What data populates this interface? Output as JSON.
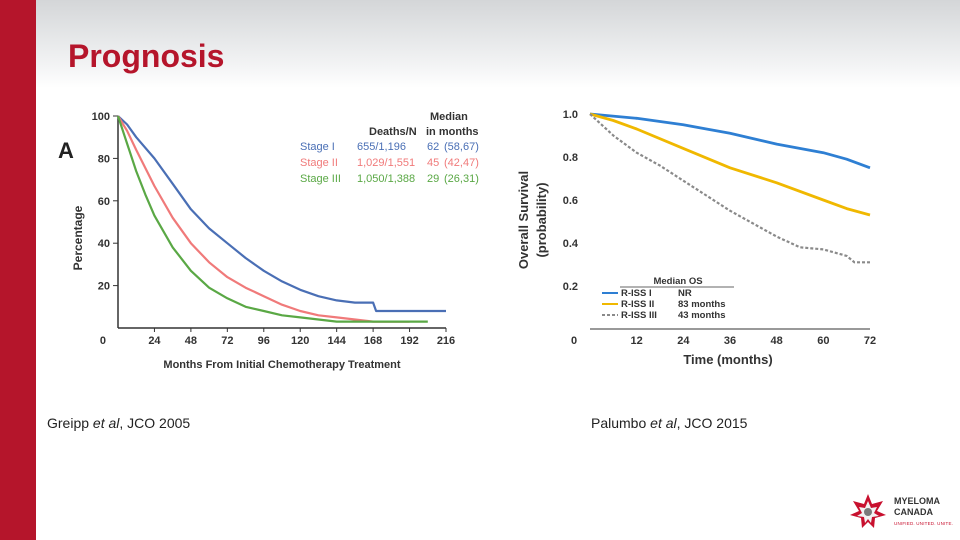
{
  "slide": {
    "title": "Prognosis",
    "accent_color": "#b5152b",
    "title_color": "#b5152b"
  },
  "captions": {
    "left": {
      "author": "Greipp ",
      "etal": "et al",
      "journal": ", JCO 2005"
    },
    "right": {
      "author": "Palumbo ",
      "etal": "et al",
      "journal": ", JCO 2015"
    }
  },
  "logo": {
    "line1": "MYELOMA",
    "line2": "CANADA",
    "tagline": "UNIFIED. UNITED. UNITE."
  },
  "chart_data": [
    {
      "type": "line",
      "panel_label": "A",
      "xlabel": "Months From Initial Chemotherapy Treatment",
      "ylabel": "Percentage",
      "xlim": [
        0,
        216
      ],
      "ylim": [
        0,
        100
      ],
      "x_ticks": [
        0,
        24,
        48,
        72,
        96,
        120,
        144,
        168,
        192,
        216
      ],
      "y_ticks": [
        20,
        40,
        60,
        80,
        100
      ],
      "legend_header": {
        "deaths": "Deaths/N",
        "median_line1": "Median",
        "median_line2": "in months"
      },
      "legend_position": "top-right",
      "series": [
        {
          "name": "Stage I",
          "deaths": "655/1,196",
          "median": "62",
          "ci": "(58,67)",
          "color": "#4a6fb5",
          "x": [
            0,
            6,
            12,
            24,
            36,
            48,
            60,
            72,
            84,
            96,
            108,
            120,
            132,
            144,
            156,
            168,
            170,
            200,
            216
          ],
          "y": [
            100,
            96,
            90,
            80,
            68,
            56,
            47,
            40,
            33,
            27,
            22,
            18,
            15,
            13,
            12,
            12,
            8,
            8,
            8
          ]
        },
        {
          "name": "Stage II",
          "deaths": "1,029/1,551",
          "median": "45",
          "ci": "(42,47)",
          "color": "#f07a7a",
          "x": [
            0,
            6,
            12,
            24,
            36,
            48,
            60,
            72,
            84,
            96,
            108,
            120,
            132,
            144,
            156,
            168,
            180,
            192
          ],
          "y": [
            100,
            93,
            84,
            67,
            52,
            40,
            31,
            24,
            19,
            15,
            11,
            8,
            6,
            5,
            4,
            3,
            3,
            3
          ]
        },
        {
          "name": "Stage III",
          "deaths": "1,050/1,388",
          "median": "29",
          "ci": "(26,31)",
          "color": "#5aa845",
          "x": [
            0,
            6,
            12,
            18,
            24,
            36,
            48,
            60,
            72,
            84,
            96,
            108,
            120,
            132,
            144,
            160,
            180,
            204
          ],
          "y": [
            100,
            87,
            74,
            63,
            53,
            38,
            27,
            19,
            14,
            10,
            8,
            6,
            5,
            4,
            3,
            3,
            3,
            3
          ]
        }
      ]
    },
    {
      "type": "line",
      "xlabel": "Time (months)",
      "ylabel": [
        "Overall Survival",
        "(probability)"
      ],
      "xlim": [
        0,
        72
      ],
      "ylim": [
        0,
        1.0
      ],
      "x_ticks": [
        "0",
        "12",
        "24",
        "36",
        "48",
        "60",
        "72"
      ],
      "y_ticks": [
        "0.2",
        "0.4",
        "0.6",
        "0.8",
        "1.0"
      ],
      "legend_title": "Median OS",
      "legend_position": "bottom-left",
      "series": [
        {
          "name": "R-ISS I",
          "median": "NR",
          "color": "#2e7fd3",
          "dashed": false,
          "x": [
            0,
            12,
            24,
            36,
            48,
            60,
            66,
            72
          ],
          "y": [
            1.0,
            0.98,
            0.95,
            0.91,
            0.86,
            0.82,
            0.79,
            0.75
          ]
        },
        {
          "name": "R-ISS II",
          "median": "83 months",
          "color": "#f0b800",
          "dashed": false,
          "x": [
            0,
            6,
            12,
            24,
            36,
            48,
            60,
            66,
            72
          ],
          "y": [
            1.0,
            0.97,
            0.93,
            0.84,
            0.75,
            0.68,
            0.6,
            0.56,
            0.53
          ]
        },
        {
          "name": "R-ISS III",
          "median": "43 months",
          "color": "#8a8a8a",
          "dashed": true,
          "x": [
            0,
            6,
            12,
            18,
            24,
            36,
            48,
            54,
            60,
            66,
            68,
            72
          ],
          "y": [
            1.0,
            0.9,
            0.82,
            0.76,
            0.69,
            0.55,
            0.43,
            0.38,
            0.37,
            0.34,
            0.31,
            0.31
          ]
        }
      ]
    }
  ]
}
